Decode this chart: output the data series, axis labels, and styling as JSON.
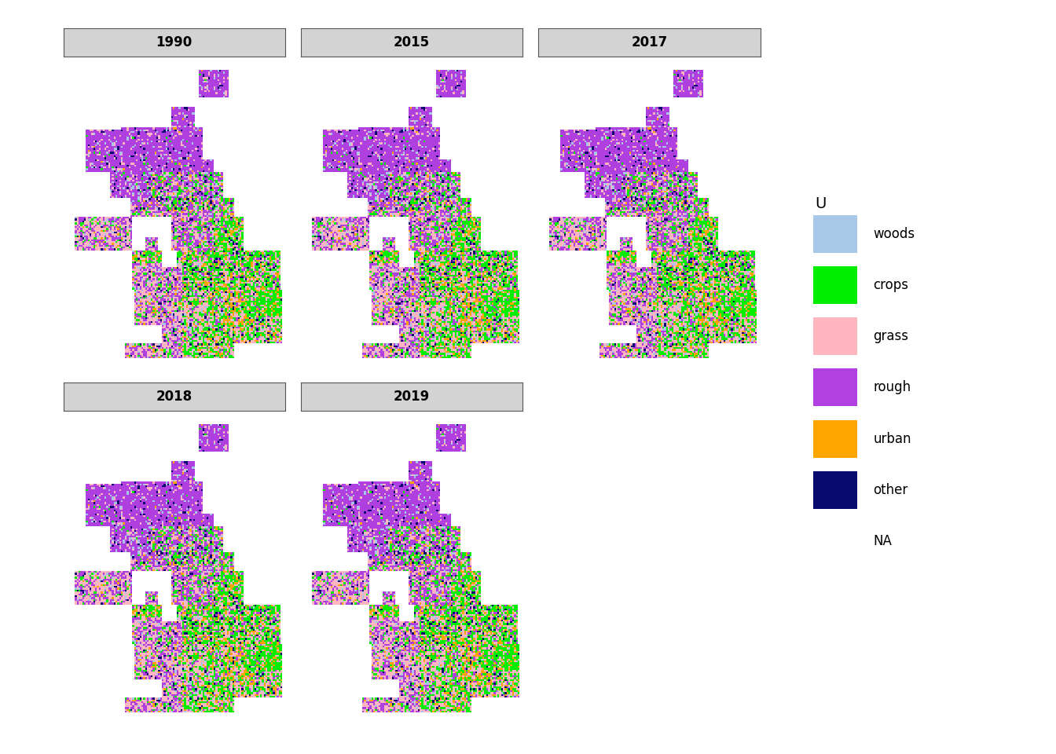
{
  "years_row1": [
    "1990",
    "2015",
    "2017"
  ],
  "years_row2": [
    "2018",
    "2019"
  ],
  "legend_title": "U",
  "legend_items": [
    {
      "label": "woods",
      "color": "#a8c8e8"
    },
    {
      "label": "crops",
      "color": "#00ee00"
    },
    {
      "label": "grass",
      "color": "#ffb6c1"
    },
    {
      "label": "rough",
      "color": "#b040e0"
    },
    {
      "label": "urban",
      "color": "#ffa500"
    },
    {
      "label": "other",
      "color": "#0a0a6e"
    },
    {
      "label": "NA",
      "color": null
    }
  ],
  "background_color": "#ffffff",
  "facet_bg": "#d3d3d3",
  "facet_border": "#555555",
  "title_fontsize": 12,
  "legend_fontsize": 12,
  "seed": 42,
  "grid_res": 120
}
